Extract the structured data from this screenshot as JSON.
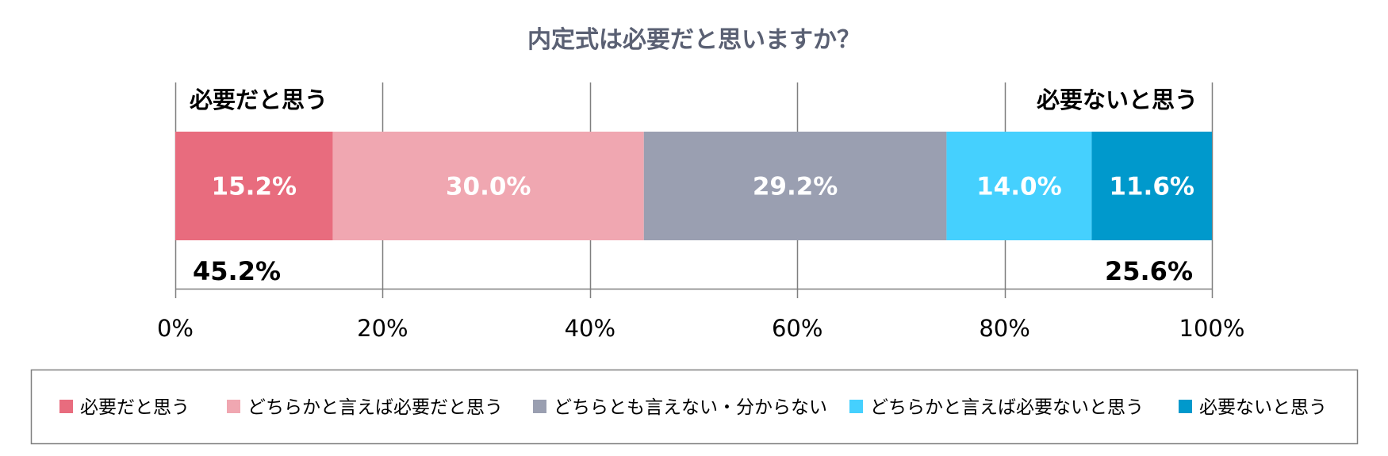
{
  "chart_data": {
    "type": "bar",
    "orientation": "horizontal-stacked",
    "title": "内定式は必要だと思いますか？",
    "series": [
      {
        "name": "必要だと思う",
        "value": 15.2,
        "label": "15.2%",
        "color": "#e86c7e"
      },
      {
        "name": "どちらかと言えば必要だと思う",
        "value": 30.0,
        "label": "30.0%",
        "color": "#f0a7b1"
      },
      {
        "name": "どちらとも言えない・分からない",
        "value": 29.2,
        "label": "29.2%",
        "color": "#9a9fb1"
      },
      {
        "name": "どちらかと言えば必要ないと思う",
        "value": 14.0,
        "label": "14.0%",
        "color": "#45d0fe"
      },
      {
        "name": "必要ないと思う",
        "value": 11.6,
        "label": "11.6%",
        "color": "#0099cc"
      }
    ],
    "groups": [
      {
        "label": "必要だと思う",
        "total": "45.2%",
        "side": "left"
      },
      {
        "label": "必要ないと思う",
        "total": "25.6%",
        "side": "right"
      }
    ],
    "xlim": [
      0,
      100
    ],
    "ticks": [
      "0%",
      "20%",
      "40%",
      "60%",
      "80%",
      "100%"
    ],
    "grid": true,
    "legend_position": "bottom"
  }
}
